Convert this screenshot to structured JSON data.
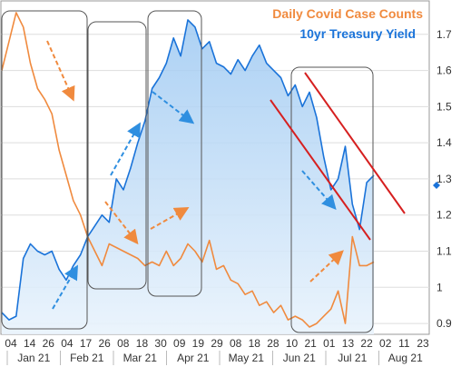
{
  "chart_data": {
    "type": "line",
    "legend": [
      {
        "label": "Daily Covid Case Counts",
        "color": "#f08a3e"
      },
      {
        "label": "10yr Treasury Yield",
        "color": "#1a73d9"
      }
    ],
    "legend_placement": "top-right",
    "y_right": {
      "ticks": [
        0.9,
        1,
        1.1,
        1.2,
        1.3,
        1.4,
        1.5,
        1.6,
        1.7
      ],
      "tick_labels": [
        "0.9",
        "1",
        "1.1",
        "1.2",
        "1.3",
        "1.4",
        "1.5",
        "1.6",
        "1.7"
      ],
      "ylim": [
        0.87,
        1.79
      ]
    },
    "x_day_ticks": [
      "04",
      "14",
      "26",
      "04",
      "17",
      "26",
      "08",
      "18",
      "30",
      "09",
      "19",
      "29",
      "08",
      "18",
      "28",
      "10",
      "21",
      "01",
      "13",
      "22",
      "02",
      "11",
      "23"
    ],
    "x_month_labels": [
      "Jan 21",
      "Feb 21",
      "Mar 21",
      "Apr 21",
      "May 21",
      "Jun 21",
      "Jul 21",
      "Aug 21"
    ],
    "series": [
      {
        "name": "10yr Treasury Yield",
        "color": "#1a73d9",
        "values": [
          0.93,
          0.91,
          0.92,
          1.08,
          1.12,
          1.1,
          1.09,
          1.1,
          1.05,
          1.02,
          1.06,
          1.09,
          1.14,
          1.17,
          1.2,
          1.18,
          1.3,
          1.27,
          1.33,
          1.4,
          1.46,
          1.55,
          1.58,
          1.62,
          1.69,
          1.64,
          1.74,
          1.72,
          1.66,
          1.68,
          1.62,
          1.61,
          1.59,
          1.63,
          1.6,
          1.64,
          1.67,
          1.62,
          1.6,
          1.58,
          1.53,
          1.56,
          1.5,
          1.54,
          1.47,
          1.36,
          1.27,
          1.3,
          1.39,
          1.23,
          1.16,
          1.29,
          1.31
        ]
      },
      {
        "name": "Daily Covid Case Counts",
        "color": "#f08a3e",
        "values": [
          1.6,
          1.68,
          1.76,
          1.72,
          1.62,
          1.55,
          1.52,
          1.48,
          1.38,
          1.31,
          1.24,
          1.2,
          1.14,
          1.1,
          1.06,
          1.12,
          1.11,
          1.1,
          1.09,
          1.08,
          1.06,
          1.07,
          1.06,
          1.1,
          1.06,
          1.08,
          1.12,
          1.1,
          1.07,
          1.13,
          1.05,
          1.06,
          1.02,
          1.01,
          0.98,
          0.99,
          0.95,
          0.96,
          0.93,
          0.95,
          0.91,
          0.92,
          0.91,
          0.89,
          0.9,
          0.92,
          0.94,
          0.99,
          0.9,
          1.14,
          1.06,
          1.06,
          1.07
        ]
      }
    ],
    "annotations": [
      {
        "type": "rounded-box",
        "color": "#555555"
      },
      {
        "type": "dashed-arrow",
        "color": "#f08a3e"
      },
      {
        "type": "dashed-arrow",
        "color": "#2f8fe0"
      },
      {
        "type": "trend-channel",
        "color": "#d62020"
      },
      {
        "type": "marker",
        "label": "1.29",
        "color": "#1a73d9"
      }
    ]
  }
}
